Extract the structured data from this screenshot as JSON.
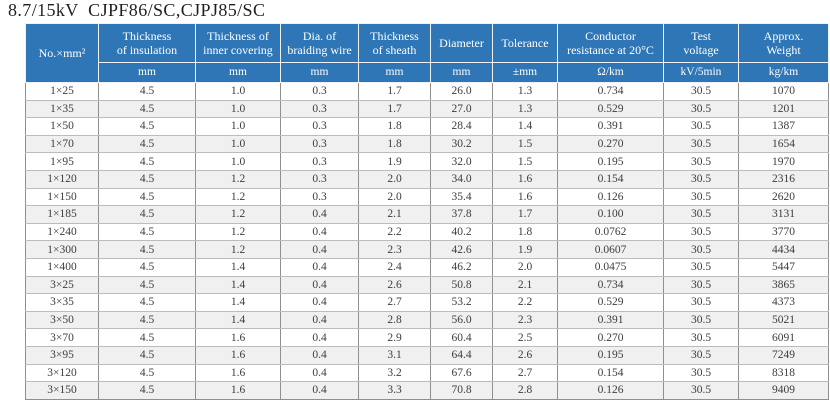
{
  "title": "8.7/15kV  CJPF86/SC,CJPJ85/SC",
  "colors": {
    "header_bg": "#2e76b6",
    "header_text": "#ffffff",
    "stripe": "#f0f0f0"
  },
  "table": {
    "columns": [
      {
        "id": "no-mm2",
        "label": "No.×mm²",
        "unit": null
      },
      {
        "id": "insulation-thickness",
        "label": "Thickness\nof insulation",
        "unit": "mm"
      },
      {
        "id": "inner-covering-thickness",
        "label": "Thickness of\ninner covering",
        "unit": "mm"
      },
      {
        "id": "braiding-wire-dia",
        "label": "Dia. of\nbraiding wire",
        "unit": "mm"
      },
      {
        "id": "sheath-thickness",
        "label": "Thickness\nof sheath",
        "unit": "mm"
      },
      {
        "id": "diameter",
        "label": "Diameter",
        "unit": "mm"
      },
      {
        "id": "tolerance",
        "label": "Tolerance",
        "unit": "±mm"
      },
      {
        "id": "conductor-resistance",
        "label": "Conductor\nresistance at 20°C",
        "unit": "Ω/km"
      },
      {
        "id": "test-voltage",
        "label": "Test\nvoltage",
        "unit": "kV/5min"
      },
      {
        "id": "approx-weight",
        "label": "Approx.\nWeight",
        "unit": "kg/km"
      }
    ],
    "rows": [
      [
        "1×25",
        "4.5",
        "1.0",
        "0.3",
        "1.7",
        "26.0",
        "1.3",
        "0.734",
        "30.5",
        "1070"
      ],
      [
        "1×35",
        "4.5",
        "1.0",
        "0.3",
        "1.7",
        "27.0",
        "1.3",
        "0.529",
        "30.5",
        "1201"
      ],
      [
        "1×50",
        "4.5",
        "1.0",
        "0.3",
        "1.8",
        "28.4",
        "1.4",
        "0.391",
        "30.5",
        "1387"
      ],
      [
        "1×70",
        "4.5",
        "1.0",
        "0.3",
        "1.8",
        "30.2",
        "1.5",
        "0.270",
        "30.5",
        "1654"
      ],
      [
        "1×95",
        "4.5",
        "1.0",
        "0.3",
        "1.9",
        "32.0",
        "1.5",
        "0.195",
        "30.5",
        "1970"
      ],
      [
        "1×120",
        "4.5",
        "1.2",
        "0.3",
        "2.0",
        "34.0",
        "1.6",
        "0.154",
        "30.5",
        "2316"
      ],
      [
        "1×150",
        "4.5",
        "1.2",
        "0.3",
        "2.0",
        "35.4",
        "1.6",
        "0.126",
        "30.5",
        "2620"
      ],
      [
        "1×185",
        "4.5",
        "1.2",
        "0.4",
        "2.1",
        "37.8",
        "1.7",
        "0.100",
        "30.5",
        "3131"
      ],
      [
        "1×240",
        "4.5",
        "1.2",
        "0.4",
        "2.2",
        "40.2",
        "1.8",
        "0.0762",
        "30.5",
        "3770"
      ],
      [
        "1×300",
        "4.5",
        "1.2",
        "0.4",
        "2.3",
        "42.6",
        "1.9",
        "0.0607",
        "30.5",
        "4434"
      ],
      [
        "1×400",
        "4.5",
        "1.4",
        "0.4",
        "2.4",
        "46.2",
        "2.0",
        "0.0475",
        "30.5",
        "5447"
      ],
      [
        "3×25",
        "4.5",
        "1.4",
        "0.4",
        "2.6",
        "50.8",
        "2.1",
        "0.734",
        "30.5",
        "3865"
      ],
      [
        "3×35",
        "4.5",
        "1.4",
        "0.4",
        "2.7",
        "53.2",
        "2.2",
        "0.529",
        "30.5",
        "4373"
      ],
      [
        "3×50",
        "4.5",
        "1.4",
        "0.4",
        "2.8",
        "56.0",
        "2.3",
        "0.391",
        "30.5",
        "5021"
      ],
      [
        "3×70",
        "4.5",
        "1.6",
        "0.4",
        "2.9",
        "60.4",
        "2.5",
        "0.270",
        "30.5",
        "6091"
      ],
      [
        "3×95",
        "4.5",
        "1.6",
        "0.4",
        "3.1",
        "64.4",
        "2.6",
        "0.195",
        "30.5",
        "7249"
      ],
      [
        "3×120",
        "4.5",
        "1.6",
        "0.4",
        "3.2",
        "67.6",
        "2.7",
        "0.154",
        "30.5",
        "8318"
      ],
      [
        "3×150",
        "4.5",
        "1.6",
        "0.4",
        "3.3",
        "70.8",
        "2.8",
        "0.126",
        "30.5",
        "9409"
      ]
    ]
  }
}
